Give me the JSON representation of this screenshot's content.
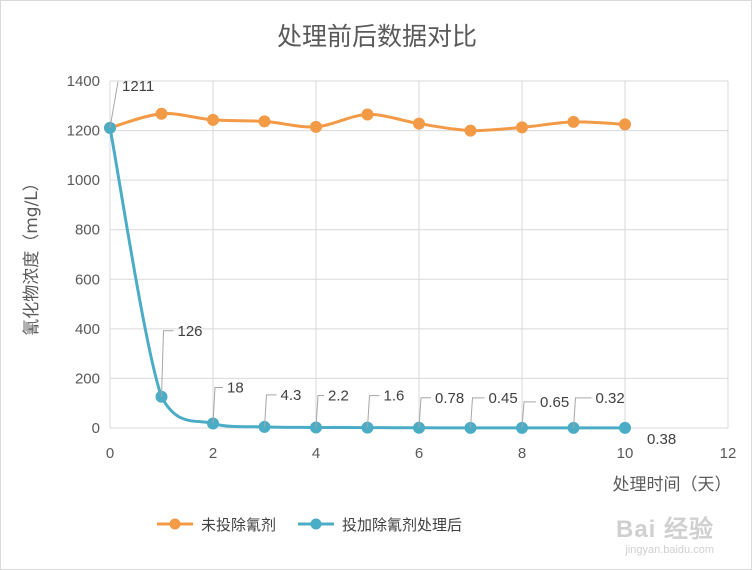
{
  "chart_data": {
    "type": "line",
    "title": "处理前后数据对比",
    "xlabel": "处理时间（天）",
    "ylabel": "氰化物浓度（mg/L）",
    "xlim": [
      0,
      12
    ],
    "ylim": [
      0,
      1400
    ],
    "x_ticks": [
      0,
      2,
      4,
      6,
      8,
      10,
      12
    ],
    "y_ticks": [
      0,
      200,
      400,
      600,
      800,
      1000,
      1200,
      1400
    ],
    "grid": true,
    "legend_position": "bottom",
    "series": [
      {
        "name": "未投除氰剂",
        "color": "#f39a47",
        "x": [
          0,
          1,
          2,
          3,
          4,
          5,
          6,
          7,
          8,
          9,
          10
        ],
        "values": [
          1211,
          1268,
          1243,
          1237,
          1215,
          1265,
          1228,
          1200,
          1213,
          1235,
          1225
        ]
      },
      {
        "name": "投加除氰剂处理后",
        "color": "#4bacc6",
        "x": [
          0,
          1,
          2,
          3,
          4,
          5,
          6,
          7,
          8,
          9,
          10
        ],
        "values": [
          1211,
          126,
          18,
          4.3,
          2.2,
          1.6,
          0.78,
          0.45,
          0.65,
          0.32,
          0.38
        ],
        "labels": [
          "1211",
          "126",
          "18",
          "4.3",
          "2.2",
          "1.6",
          "0.78",
          "0.45",
          "0.65",
          "0.32",
          "0.38"
        ]
      }
    ]
  },
  "watermark": {
    "logo": "Bai 经验",
    "url": "jingyan.baidu.com"
  }
}
